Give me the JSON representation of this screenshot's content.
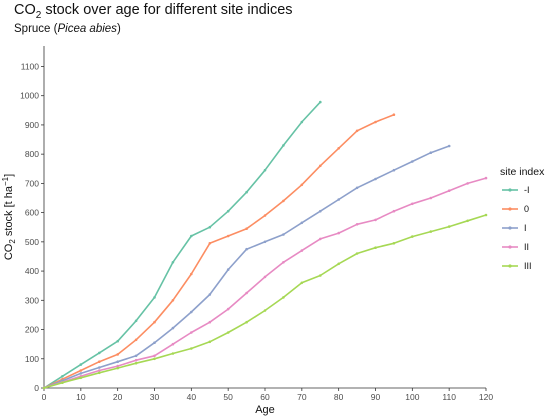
{
  "chart_data": {
    "type": "line",
    "title": "stock over age for different site indices",
    "title_prefix": "CO",
    "title_sub": "2",
    "subtitle_prefix": "Spruce (",
    "subtitle_italic": "Picea abies",
    "subtitle_suffix": ")",
    "xlabel": "Age",
    "ylabel_prefix": "CO",
    "ylabel_sub": "2",
    "ylabel_suffix": " stock [t ha",
    "ylabel_sup": "−1",
    "ylabel_end": "]",
    "xlim": [
      0,
      120
    ],
    "ylim": [
      0,
      1170
    ],
    "x_ticks": [
      0,
      10,
      20,
      30,
      40,
      50,
      60,
      70,
      80,
      90,
      100,
      110,
      120
    ],
    "y_ticks": [
      0,
      100,
      200,
      300,
      400,
      500,
      600,
      700,
      800,
      900,
      1000,
      1100
    ],
    "grid": false,
    "legend_title": "site index",
    "legend_position": "right",
    "series": [
      {
        "name": "-I",
        "color": "#66c2a5",
        "x": [
          0,
          5,
          10,
          15,
          20,
          25,
          30,
          35,
          40,
          45,
          50,
          55,
          60,
          65,
          70,
          75
        ],
        "y": [
          0,
          40,
          80,
          120,
          160,
          230,
          310,
          430,
          520,
          550,
          605,
          670,
          745,
          830,
          910,
          978
        ]
      },
      {
        "name": "0",
        "color": "#fc8d62",
        "x": [
          0,
          5,
          10,
          15,
          20,
          25,
          30,
          35,
          40,
          45,
          50,
          55,
          60,
          65,
          70,
          75,
          80,
          85,
          90,
          95
        ],
        "y": [
          0,
          30,
          60,
          90,
          115,
          165,
          225,
          300,
          390,
          495,
          520,
          545,
          590,
          640,
          695,
          760,
          820,
          880,
          910,
          935
        ]
      },
      {
        "name": "I",
        "color": "#8da0cb",
        "x": [
          0,
          5,
          10,
          15,
          20,
          25,
          30,
          35,
          40,
          45,
          50,
          55,
          60,
          65,
          70,
          75,
          80,
          85,
          90,
          95,
          100,
          105,
          110
        ],
        "y": [
          0,
          25,
          50,
          70,
          90,
          110,
          155,
          205,
          260,
          320,
          405,
          475,
          500,
          525,
          565,
          605,
          645,
          685,
          715,
          745,
          775,
          805,
          828
        ]
      },
      {
        "name": "II",
        "color": "#e78ac3",
        "x": [
          0,
          5,
          10,
          15,
          20,
          25,
          30,
          35,
          40,
          45,
          50,
          55,
          60,
          65,
          70,
          75,
          80,
          85,
          90,
          95,
          100,
          105,
          110,
          115,
          120
        ],
        "y": [
          0,
          20,
          40,
          60,
          75,
          95,
          110,
          150,
          190,
          225,
          270,
          325,
          380,
          430,
          470,
          510,
          530,
          560,
          575,
          605,
          630,
          650,
          675,
          700,
          718
        ]
      },
      {
        "name": "III",
        "color": "#a6d854",
        "x": [
          0,
          5,
          10,
          15,
          20,
          25,
          30,
          35,
          40,
          45,
          50,
          55,
          60,
          65,
          70,
          75,
          80,
          85,
          90,
          95,
          100,
          105,
          110,
          115,
          120
        ],
        "y": [
          0,
          18,
          35,
          52,
          68,
          85,
          100,
          118,
          135,
          158,
          190,
          225,
          265,
          310,
          360,
          385,
          425,
          460,
          480,
          495,
          518,
          535,
          552,
          572,
          592
        ]
      }
    ]
  }
}
